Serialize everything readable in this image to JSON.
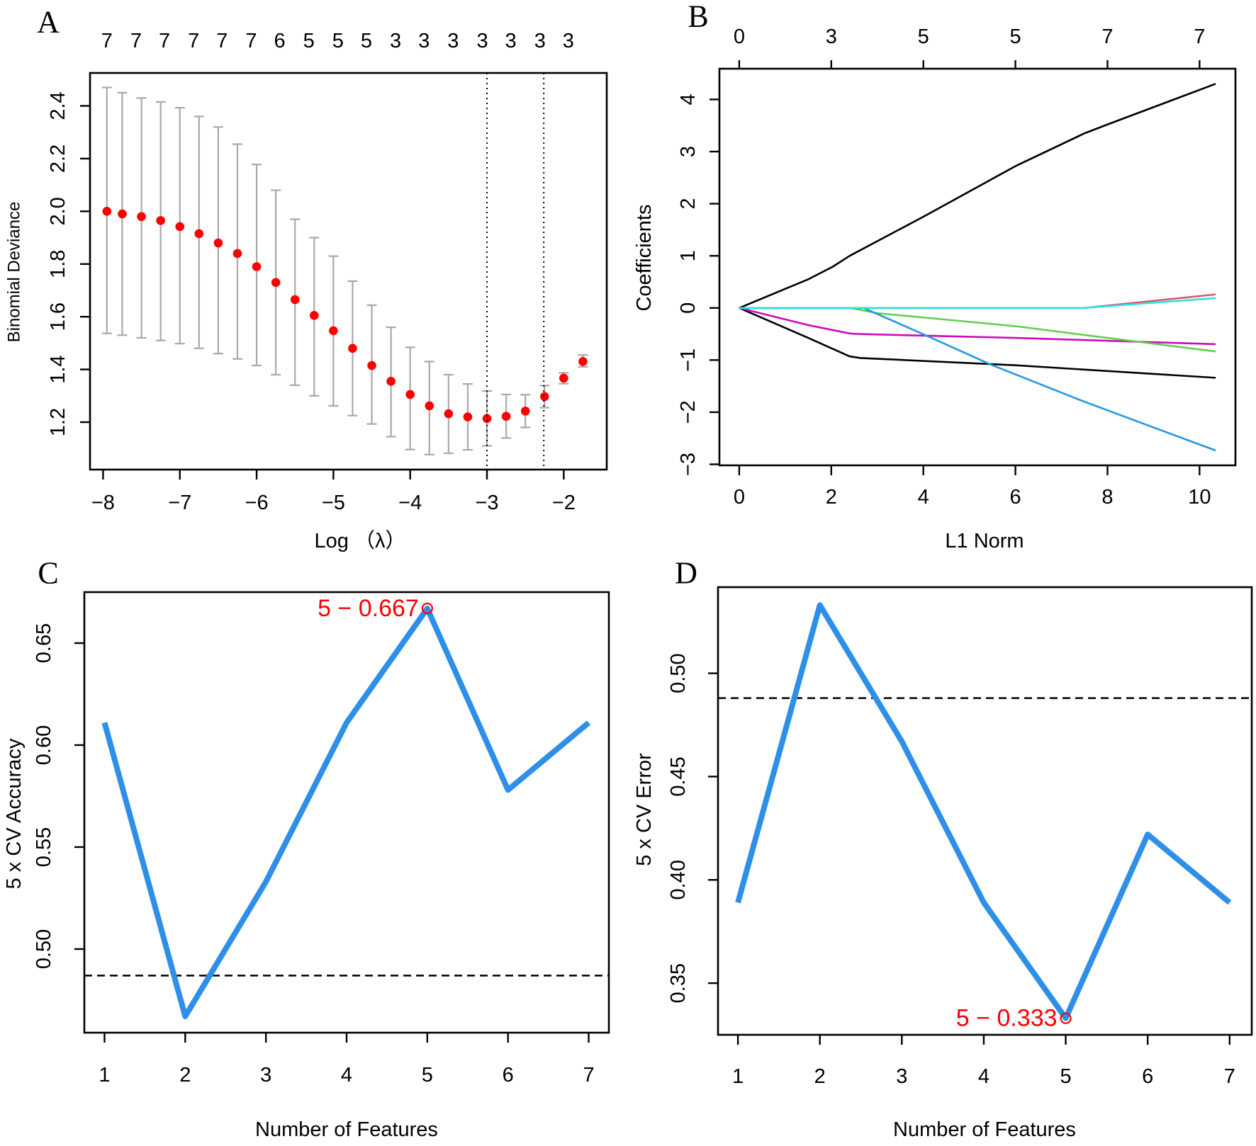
{
  "chart_data": [
    {
      "panel": "A",
      "type": "scatter",
      "letter": "A",
      "xlabel": "Log （λ）",
      "ylabel": "Binomial Deviance",
      "xlim": [
        -8.17,
        -1.44
      ],
      "ylim": [
        1.02,
        2.525
      ],
      "xticks": [
        -8,
        -7,
        -6,
        -5,
        -4,
        -3,
        -2
      ],
      "xtick_labels": [
        "−8",
        "−7",
        "−6",
        "−5",
        "−4",
        "−3",
        "−2"
      ],
      "yticks": [
        1.2,
        1.4,
        1.6,
        1.8,
        2.0,
        2.2,
        2.4
      ],
      "ytick_labels": [
        "1.2",
        "1.4",
        "1.6",
        "1.8",
        "2.0",
        "2.2",
        "2.4"
      ],
      "top_axis": {
        "at": [
          -7.95,
          -7.57,
          -7.2,
          -6.82,
          -6.45,
          -6.07,
          -5.7,
          -5.32,
          -4.94,
          -4.57,
          -4.19,
          -3.82,
          -3.44,
          -3.06,
          -2.69,
          -2.31,
          -1.94
        ],
        "labels": [
          "7",
          "7",
          "7",
          "7",
          "7",
          "7",
          "6",
          "5",
          "5",
          "5",
          "3",
          "3",
          "3",
          "3",
          "3",
          "3",
          "3"
        ]
      },
      "vlines": [
        -3.0,
        -2.26
      ],
      "points": {
        "x": [
          -7.95,
          -7.75,
          -7.5,
          -7.25,
          -7.0,
          -6.75,
          -6.5,
          -6.25,
          -6.0,
          -5.75,
          -5.5,
          -5.25,
          -5.0,
          -4.75,
          -4.5,
          -4.25,
          -4.0,
          -3.75,
          -3.5,
          -3.25,
          -3.0,
          -2.75,
          -2.5,
          -2.25,
          -2.0,
          -1.75
        ],
        "mean": [
          2.0,
          1.99,
          1.98,
          1.965,
          1.942,
          1.915,
          1.88,
          1.84,
          1.79,
          1.73,
          1.665,
          1.605,
          1.547,
          1.48,
          1.415,
          1.355,
          1.305,
          1.262,
          1.232,
          1.22,
          1.214,
          1.222,
          1.242,
          1.297,
          1.367,
          1.43
        ],
        "upper": [
          2.47,
          2.45,
          2.43,
          2.415,
          2.393,
          2.36,
          2.32,
          2.255,
          2.178,
          2.08,
          1.97,
          1.9,
          1.83,
          1.735,
          1.644,
          1.56,
          1.484,
          1.43,
          1.38,
          1.345,
          1.318,
          1.305,
          1.304,
          1.339,
          1.387,
          1.455
        ],
        "lower": [
          1.537,
          1.53,
          1.52,
          1.51,
          1.498,
          1.48,
          1.46,
          1.44,
          1.415,
          1.38,
          1.34,
          1.3,
          1.262,
          1.225,
          1.193,
          1.145,
          1.096,
          1.077,
          1.082,
          1.095,
          1.11,
          1.14,
          1.18,
          1.255,
          1.346,
          1.41
        ]
      },
      "colors": {
        "points": "#ff0000",
        "errorbars": "#a9a9a9",
        "vlines": "#000000"
      }
    },
    {
      "panel": "B",
      "type": "line",
      "letter": "B",
      "xlabel": "L1 Norm",
      "ylabel": "Coefficients",
      "xlim": [
        -0.43,
        10.78
      ],
      "ylim": [
        -3.02,
        4.59
      ],
      "xticks": [
        0,
        2,
        4,
        6,
        8,
        10
      ],
      "xtick_labels": [
        "0",
        "2",
        "4",
        "6",
        "8",
        "10"
      ],
      "yticks": [
        -3,
        -2,
        -1,
        0,
        1,
        2,
        3,
        4
      ],
      "ytick_labels": [
        "−3",
        "−2",
        "−1",
        "0",
        "1",
        "2",
        "3",
        "4"
      ],
      "top_axis": {
        "at": [
          0,
          2,
          4,
          6,
          8,
          10
        ],
        "labels": [
          "0",
          "3",
          "5",
          "5",
          "7",
          "7"
        ]
      },
      "series": [
        {
          "name": "var-black-up",
          "color": "#000000",
          "x": [
            0,
            1.5,
            2.03,
            2.4,
            4,
            6,
            7.5,
            8.03,
            10.35
          ],
          "y": [
            0,
            0.55,
            0.79,
            1.0,
            1.75,
            2.72,
            3.35,
            3.53,
            4.3
          ]
        },
        {
          "name": "var-black-down",
          "color": "#000000",
          "x": [
            0,
            1.5,
            2.4,
            2.63,
            6,
            10.35
          ],
          "y": [
            0,
            -0.575,
            -0.93,
            -0.96,
            -1.1,
            -1.34
          ]
        },
        {
          "name": "var-magenta",
          "color": "#cd0bbc",
          "x": [
            0,
            1.5,
            2.4,
            2.6,
            6,
            10.35
          ],
          "y": [
            0,
            -0.33,
            -0.49,
            -0.5,
            -0.575,
            -0.695
          ]
        },
        {
          "name": "var-green",
          "color": "#61d04f",
          "x": [
            0,
            2.4,
            3,
            6,
            8,
            10.35
          ],
          "y": [
            0,
            0,
            -0.1,
            -0.35,
            -0.575,
            -0.835
          ]
        },
        {
          "name": "var-blue",
          "color": "#2297e6",
          "x": [
            0,
            2.7,
            4,
            5.5,
            7.5,
            10.35
          ],
          "y": [
            0,
            0,
            -0.505,
            -1.1,
            -1.8,
            -2.735
          ]
        },
        {
          "name": "var-red",
          "color": "#df536b",
          "x": [
            0,
            7.5,
            10.35
          ],
          "y": [
            0,
            0,
            0.26
          ]
        },
        {
          "name": "var-cyan",
          "color": "#28e2e5",
          "x": [
            0,
            7.5,
            10.35
          ],
          "y": [
            0,
            0,
            0.19
          ]
        }
      ]
    },
    {
      "panel": "C",
      "type": "line",
      "letter": "C",
      "xlabel": "Number of Features",
      "ylabel": "5 x CV Accuracy",
      "xlim": [
        0.75,
        7.25
      ],
      "ylim": [
        0.459,
        0.675
      ],
      "xticks": [
        1,
        2,
        3,
        4,
        5,
        6,
        7
      ],
      "xtick_labels": [
        "1",
        "2",
        "3",
        "4",
        "5",
        "6",
        "7"
      ],
      "yticks": [
        0.5,
        0.55,
        0.6,
        0.65
      ],
      "ytick_labels": [
        "0.50",
        "0.55",
        "0.60",
        "0.65"
      ],
      "x": [
        1,
        2,
        3,
        4,
        5,
        6,
        7
      ],
      "y": [
        0.611,
        0.467,
        0.533,
        0.611,
        0.667,
        0.578,
        0.611
      ],
      "hline": 0.487,
      "highlight": {
        "x": 5,
        "y": 0.667,
        "label": "5 − 0.667"
      },
      "colors": {
        "line": "#2e8fe8",
        "highlight": "#ff0000"
      }
    },
    {
      "panel": "D",
      "type": "line",
      "letter": "D",
      "xlabel": "Number of Features",
      "ylabel": "5 x CV Error",
      "xlim": [
        0.757,
        7.27
      ],
      "ylim": [
        0.325,
        0.5417
      ],
      "xticks": [
        1,
        2,
        3,
        4,
        5,
        6,
        7
      ],
      "xtick_labels": [
        "1",
        "2",
        "3",
        "4",
        "5",
        "6",
        "7"
      ],
      "yticks": [
        0.35,
        0.4,
        0.45,
        0.5
      ],
      "ytick_labels": [
        "0.35",
        "0.40",
        "0.45",
        "0.50"
      ],
      "x": [
        1,
        2,
        3,
        4,
        5,
        6,
        7
      ],
      "y": [
        0.389,
        0.533,
        0.467,
        0.389,
        0.333,
        0.422,
        0.389
      ],
      "hline": 0.488,
      "highlight": {
        "x": 5,
        "y": 0.333,
        "label": "5 − 0.333"
      },
      "colors": {
        "line": "#2e8fe8",
        "highlight": "#ff0000"
      }
    }
  ]
}
